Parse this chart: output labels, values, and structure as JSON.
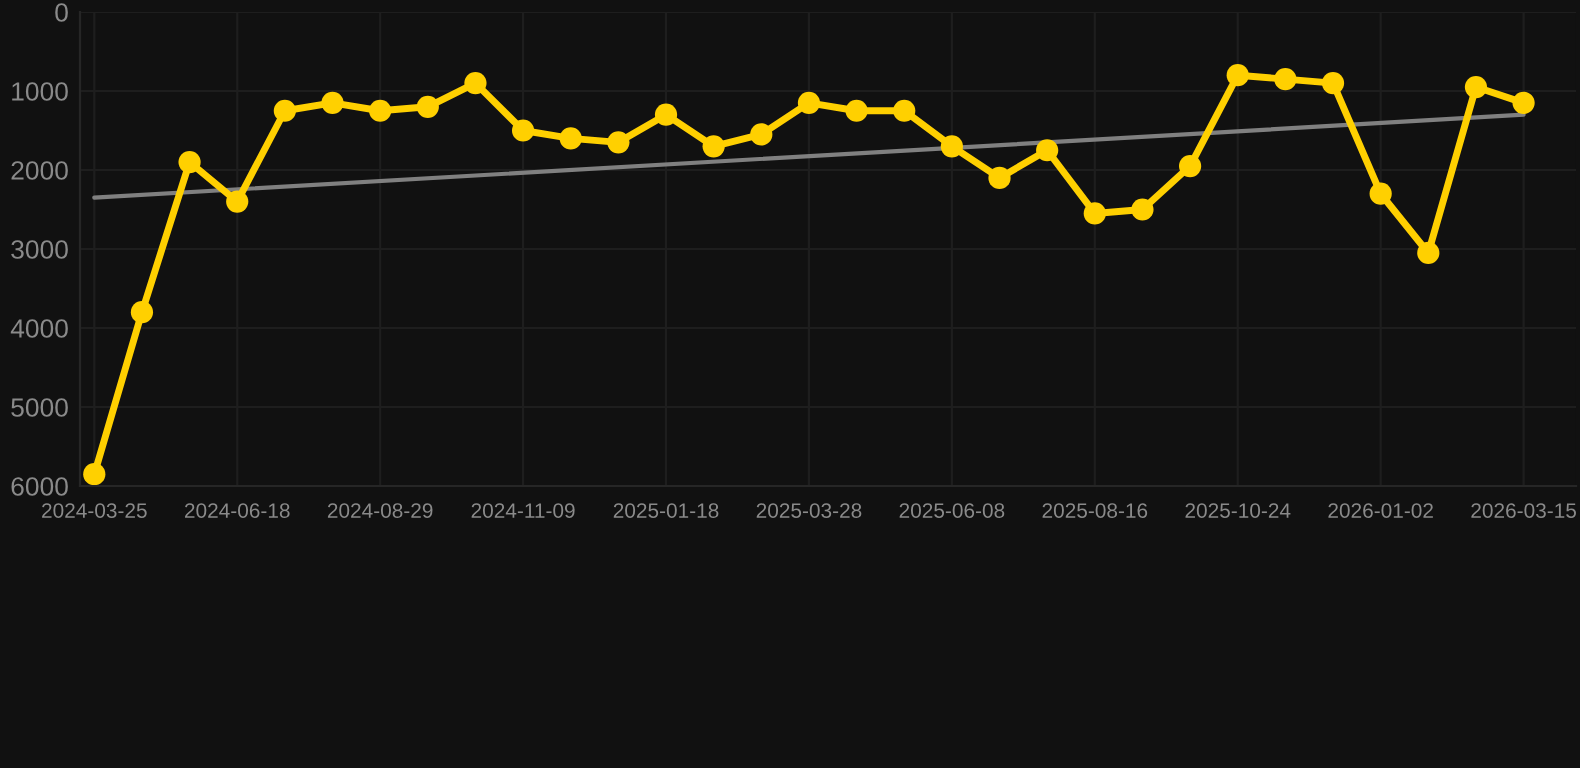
{
  "chart_data": {
    "type": "line",
    "categories": [
      "2024-03-25",
      null,
      null,
      "2024-06-18",
      null,
      null,
      "2024-08-29",
      null,
      null,
      "2024-11-09",
      null,
      null,
      "2025-01-18",
      null,
      null,
      "2025-03-28",
      null,
      null,
      "2025-06-08",
      null,
      null,
      "2025-08-16",
      null,
      null,
      "2025-10-24",
      null,
      null,
      "2026-01-02",
      null,
      null,
      "2026-03-15"
    ],
    "series": [
      {
        "color": "#ffd000",
        "marker": "circle",
        "values": [
          5850,
          3800,
          1900,
          2400,
          1250,
          1150,
          1250,
          1200,
          900,
          1500,
          1600,
          1650,
          1300,
          1700,
          1550,
          1150,
          1250,
          1250,
          1700,
          2100,
          1750,
          2550,
          2500,
          1950,
          800,
          850,
          900,
          2300,
          3050,
          950,
          1150
        ]
      },
      {
        "color": "#808080",
        "marker": "none",
        "values": [
          2350,
          null,
          null,
          null,
          null,
          null,
          null,
          null,
          null,
          null,
          null,
          null,
          null,
          null,
          null,
          null,
          null,
          null,
          null,
          null,
          null,
          null,
          null,
          null,
          null,
          null,
          null,
          null,
          null,
          null,
          1300
        ]
      }
    ],
    "ylim": [
      6000,
      0
    ],
    "yticks": [
      0,
      1000,
      2000,
      3000,
      4000,
      5000,
      6000
    ],
    "grid": true,
    "legend": false
  }
}
